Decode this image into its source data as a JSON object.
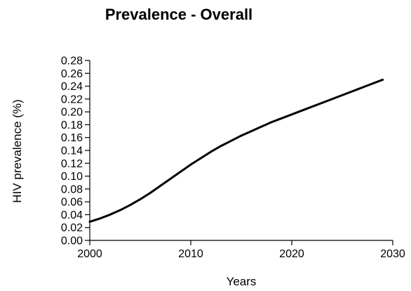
{
  "chart_data": {
    "type": "line",
    "title": "Prevalence - Overall",
    "xlabel": "Years",
    "ylabel": "HIV prevalence (%)",
    "xlim": [
      2000,
      2030
    ],
    "ylim": [
      0,
      0.28
    ],
    "x_ticks": [
      "2000",
      "2010",
      "2020",
      "2030"
    ],
    "y_ticks": [
      "0.00",
      "0.02",
      "0.04",
      "0.06",
      "0.08",
      "0.10",
      "0.12",
      "0.14",
      "0.16",
      "0.18",
      "0.20",
      "0.22",
      "0.24",
      "0.26",
      "0.28"
    ],
    "grid": false,
    "legend": "none",
    "series": [
      {
        "color": "#000000",
        "x": [
          2000,
          2001,
          2002,
          2003,
          2004,
          2005,
          2006,
          2007,
          2008,
          2009,
          2010,
          2011,
          2012,
          2013,
          2014,
          2015,
          2016,
          2017,
          2018,
          2019,
          2020,
          2021,
          2022,
          2023,
          2024,
          2025,
          2026,
          2027,
          2028,
          2029
        ],
        "y": [
          0.029,
          0.034,
          0.04,
          0.047,
          0.055,
          0.064,
          0.074,
          0.085,
          0.096,
          0.107,
          0.118,
          0.128,
          0.138,
          0.147,
          0.155,
          0.163,
          0.17,
          0.177,
          0.184,
          0.19,
          0.196,
          0.202,
          0.208,
          0.214,
          0.22,
          0.226,
          0.232,
          0.238,
          0.244,
          0.25
        ]
      }
    ]
  }
}
